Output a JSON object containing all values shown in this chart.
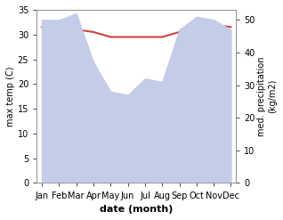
{
  "months": [
    "Jan",
    "Feb",
    "Mar",
    "Apr",
    "May",
    "Jun",
    "Jul",
    "Aug",
    "Sep",
    "Oct",
    "Nov",
    "Dec"
  ],
  "x": [
    0,
    1,
    2,
    3,
    4,
    5,
    6,
    7,
    8,
    9,
    10,
    11
  ],
  "temp_max": [
    31.5,
    30.5,
    31.0,
    30.5,
    29.5,
    29.5,
    29.5,
    29.5,
    30.5,
    32.5,
    32.0,
    31.5
  ],
  "precip": [
    50,
    50,
    52,
    37,
    28,
    27,
    32,
    31,
    47,
    51,
    50,
    47
  ],
  "temp_color": "#cc4444",
  "precip_fill_color": "#c5cce8",
  "temp_ylim": [
    0,
    35
  ],
  "precip_ylim": [
    0,
    53.125
  ],
  "ylabel_left": "max temp (C)",
  "ylabel_right": "med. precipitation\n(kg/m2)",
  "xlabel": "date (month)",
  "bg_color": "#ffffff",
  "spine_color": "#888888"
}
